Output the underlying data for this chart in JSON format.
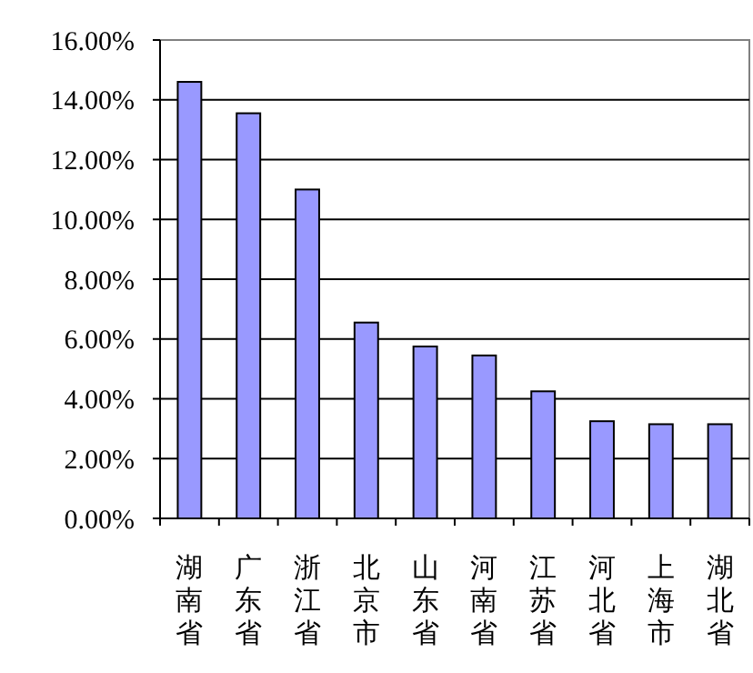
{
  "chart_data": {
    "type": "bar",
    "categories": [
      "湖南省",
      "广东省",
      "浙江省",
      "北京市",
      "山东省",
      "河南省",
      "江苏省",
      "河北省",
      "上海市",
      "湖北省"
    ],
    "values": [
      14.6,
      13.55,
      11.0,
      6.55,
      5.75,
      5.45,
      4.25,
      3.25,
      3.15,
      3.15
    ],
    "color": "#9999ff",
    "ylim": [
      0,
      16
    ],
    "yticks": [
      {
        "value": 0,
        "label": "0.00%"
      },
      {
        "value": 2,
        "label": "2.00%"
      },
      {
        "value": 4,
        "label": "4.00%"
      },
      {
        "value": 6,
        "label": "6.00%"
      },
      {
        "value": 8,
        "label": "8.00%"
      },
      {
        "value": 10,
        "label": "10.00%"
      },
      {
        "value": 12,
        "label": "12.00%"
      },
      {
        "value": 14,
        "label": "14.00%"
      },
      {
        "value": 16,
        "label": "16.00%"
      }
    ],
    "grid": "y"
  }
}
